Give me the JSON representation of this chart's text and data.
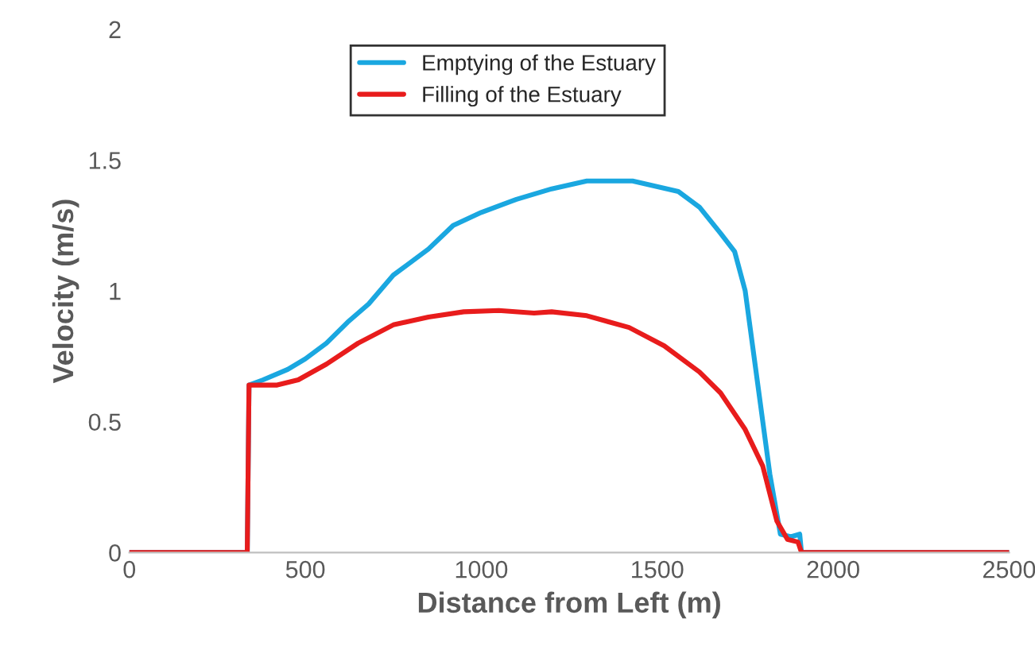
{
  "chart_data": {
    "type": "line",
    "xlabel": "Distance from Left (m)",
    "ylabel": "Velocity (m/s)",
    "xlim": [
      0,
      2500
    ],
    "xticks": [
      0,
      500,
      1000,
      1500,
      2000,
      2500
    ],
    "ylim": [
      0,
      2
    ],
    "yticks": [
      0,
      0.5,
      1,
      1.5,
      2
    ],
    "grid": false,
    "legend": "top",
    "marker": "none",
    "line_style": "solid",
    "series": [
      {
        "name": "Emptying of the Estuary",
        "color": "#1aa7e0",
        "x": [
          0,
          335,
          340,
          380,
          450,
          500,
          560,
          620,
          680,
          750,
          850,
          920,
          1000,
          1100,
          1200,
          1300,
          1430,
          1560,
          1620,
          1680,
          1720,
          1750,
          1790,
          1820,
          1850,
          1880,
          1905,
          1910,
          2500
        ],
        "values": [
          0,
          0,
          0.64,
          0.66,
          0.7,
          0.74,
          0.8,
          0.88,
          0.95,
          1.06,
          1.16,
          1.25,
          1.3,
          1.35,
          1.39,
          1.42,
          1.42,
          1.38,
          1.32,
          1.22,
          1.15,
          1.0,
          0.6,
          0.3,
          0.07,
          0.06,
          0.07,
          0,
          0
        ]
      },
      {
        "name": "Filling of the Estuary",
        "color": "#e81c1c",
        "x": [
          0,
          335,
          340,
          420,
          480,
          560,
          650,
          750,
          850,
          950,
          1050,
          1150,
          1200,
          1300,
          1420,
          1520,
          1620,
          1680,
          1750,
          1800,
          1840,
          1870,
          1900,
          1910,
          2500
        ],
        "values": [
          0,
          0,
          0.64,
          0.64,
          0.66,
          0.72,
          0.8,
          0.87,
          0.9,
          0.92,
          0.925,
          0.915,
          0.92,
          0.905,
          0.86,
          0.79,
          0.69,
          0.61,
          0.47,
          0.33,
          0.12,
          0.05,
          0.04,
          0,
          0
        ]
      }
    ]
  }
}
